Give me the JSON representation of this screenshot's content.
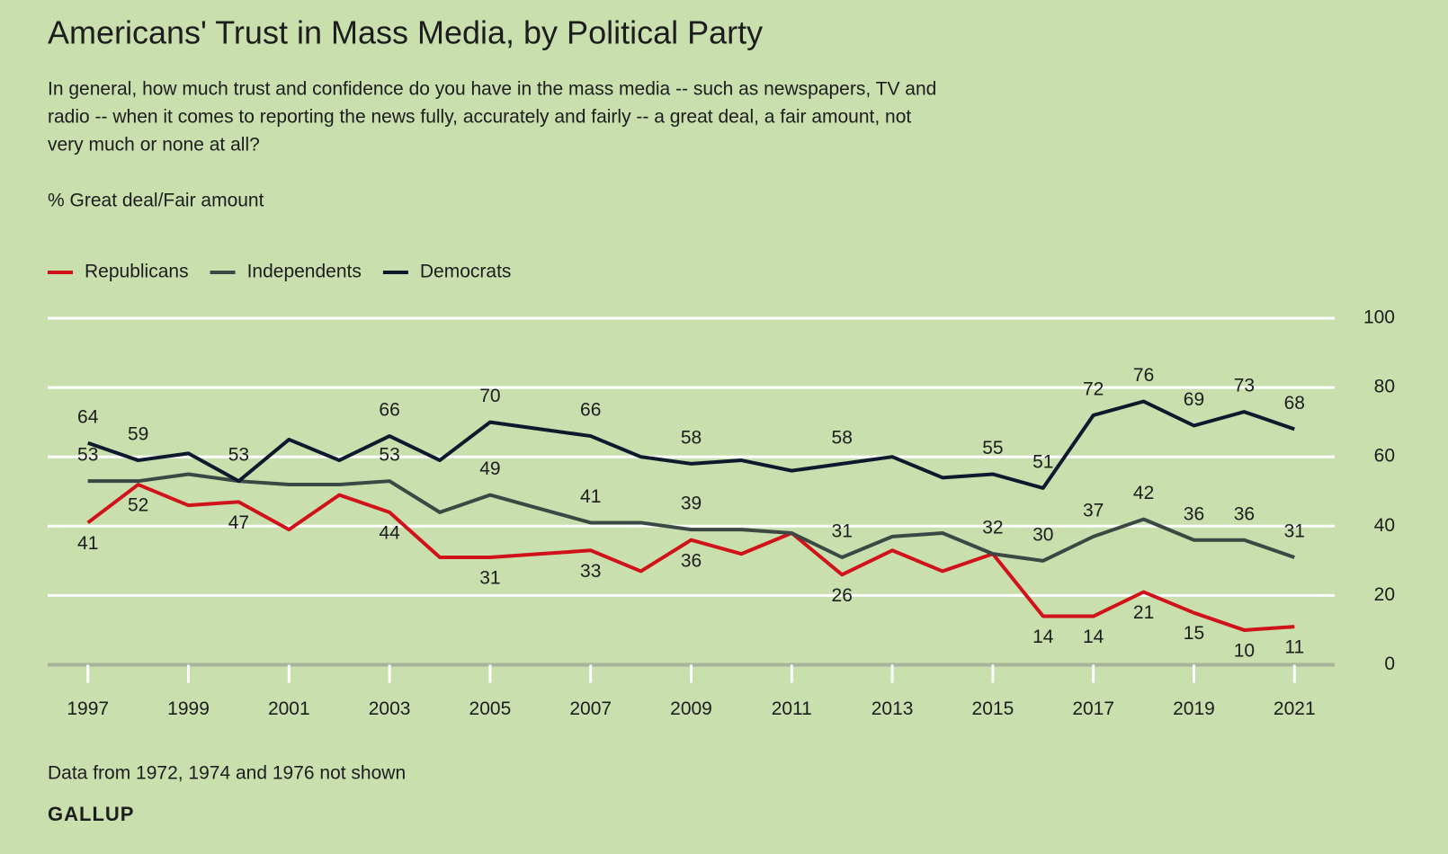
{
  "chart_data": {
    "type": "line",
    "title": "Americans' Trust in Mass Media, by Political Party",
    "subtitle": [
      "In general, how much trust and confidence do you have in the mass media -- such as newspapers, TV and",
      "radio -- when it comes to reporting the news fully, accurately and fairly -- a great deal, a fair amount, not",
      "very much or none at all?"
    ],
    "ylabel": "% Great deal/Fair amount",
    "note": "Data from 1972, 1974 and 1976 not shown",
    "source": "GALLUP",
    "x": [
      1997,
      1998,
      1999,
      2000,
      2001,
      2002,
      2003,
      2004,
      2005,
      2006,
      2007,
      2008,
      2009,
      2010,
      2011,
      2012,
      2013,
      2014,
      2015,
      2016,
      2017,
      2018,
      2019,
      2020,
      2021
    ],
    "series": [
      {
        "name": "Republicans",
        "color": "#d0121b",
        "label_position": "below",
        "values": [
          41,
          52,
          46,
          47,
          39,
          49,
          44,
          31,
          31,
          32,
          33,
          27,
          36,
          32,
          38,
          26,
          33,
          27,
          32,
          14,
          14,
          21,
          15,
          10,
          11
        ],
        "value_labels": [
          41,
          52,
          null,
          47,
          null,
          null,
          44,
          null,
          31,
          null,
          33,
          null,
          36,
          null,
          null,
          26,
          null,
          null,
          null,
          14,
          14,
          21,
          15,
          10,
          11
        ]
      },
      {
        "name": "Independents",
        "color": "#3b4844",
        "label_position": "above",
        "values": [
          53,
          53,
          55,
          53,
          52,
          52,
          53,
          44,
          49,
          45,
          41,
          41,
          39,
          39,
          38,
          31,
          37,
          38,
          32,
          30,
          37,
          42,
          36,
          36,
          31
        ],
        "value_labels": [
          53,
          null,
          null,
          null,
          null,
          null,
          53,
          null,
          49,
          null,
          41,
          null,
          39,
          null,
          null,
          31,
          null,
          null,
          32,
          30,
          37,
          42,
          36,
          36,
          31
        ]
      },
      {
        "name": "Democrats",
        "color": "#0d1a2d",
        "label_position": "above",
        "values": [
          64,
          59,
          61,
          53,
          65,
          59,
          66,
          59,
          70,
          68,
          66,
          60,
          58,
          59,
          56,
          58,
          60,
          54,
          55,
          51,
          72,
          76,
          69,
          73,
          68
        ],
        "value_labels": [
          64,
          59,
          null,
          53,
          null,
          null,
          66,
          null,
          70,
          null,
          66,
          null,
          58,
          null,
          null,
          58,
          null,
          null,
          55,
          51,
          72,
          76,
          69,
          73,
          68
        ]
      }
    ],
    "xlim": [
      1996.2,
      2021.8
    ],
    "xticks": [
      1997,
      1999,
      2001,
      2003,
      2005,
      2007,
      2009,
      2011,
      2013,
      2015,
      2017,
      2019,
      2021
    ],
    "ylim": [
      0,
      100
    ],
    "yticks": [
      0,
      20,
      40,
      60,
      80,
      100
    ],
    "grid": true,
    "legend": "top-left"
  }
}
